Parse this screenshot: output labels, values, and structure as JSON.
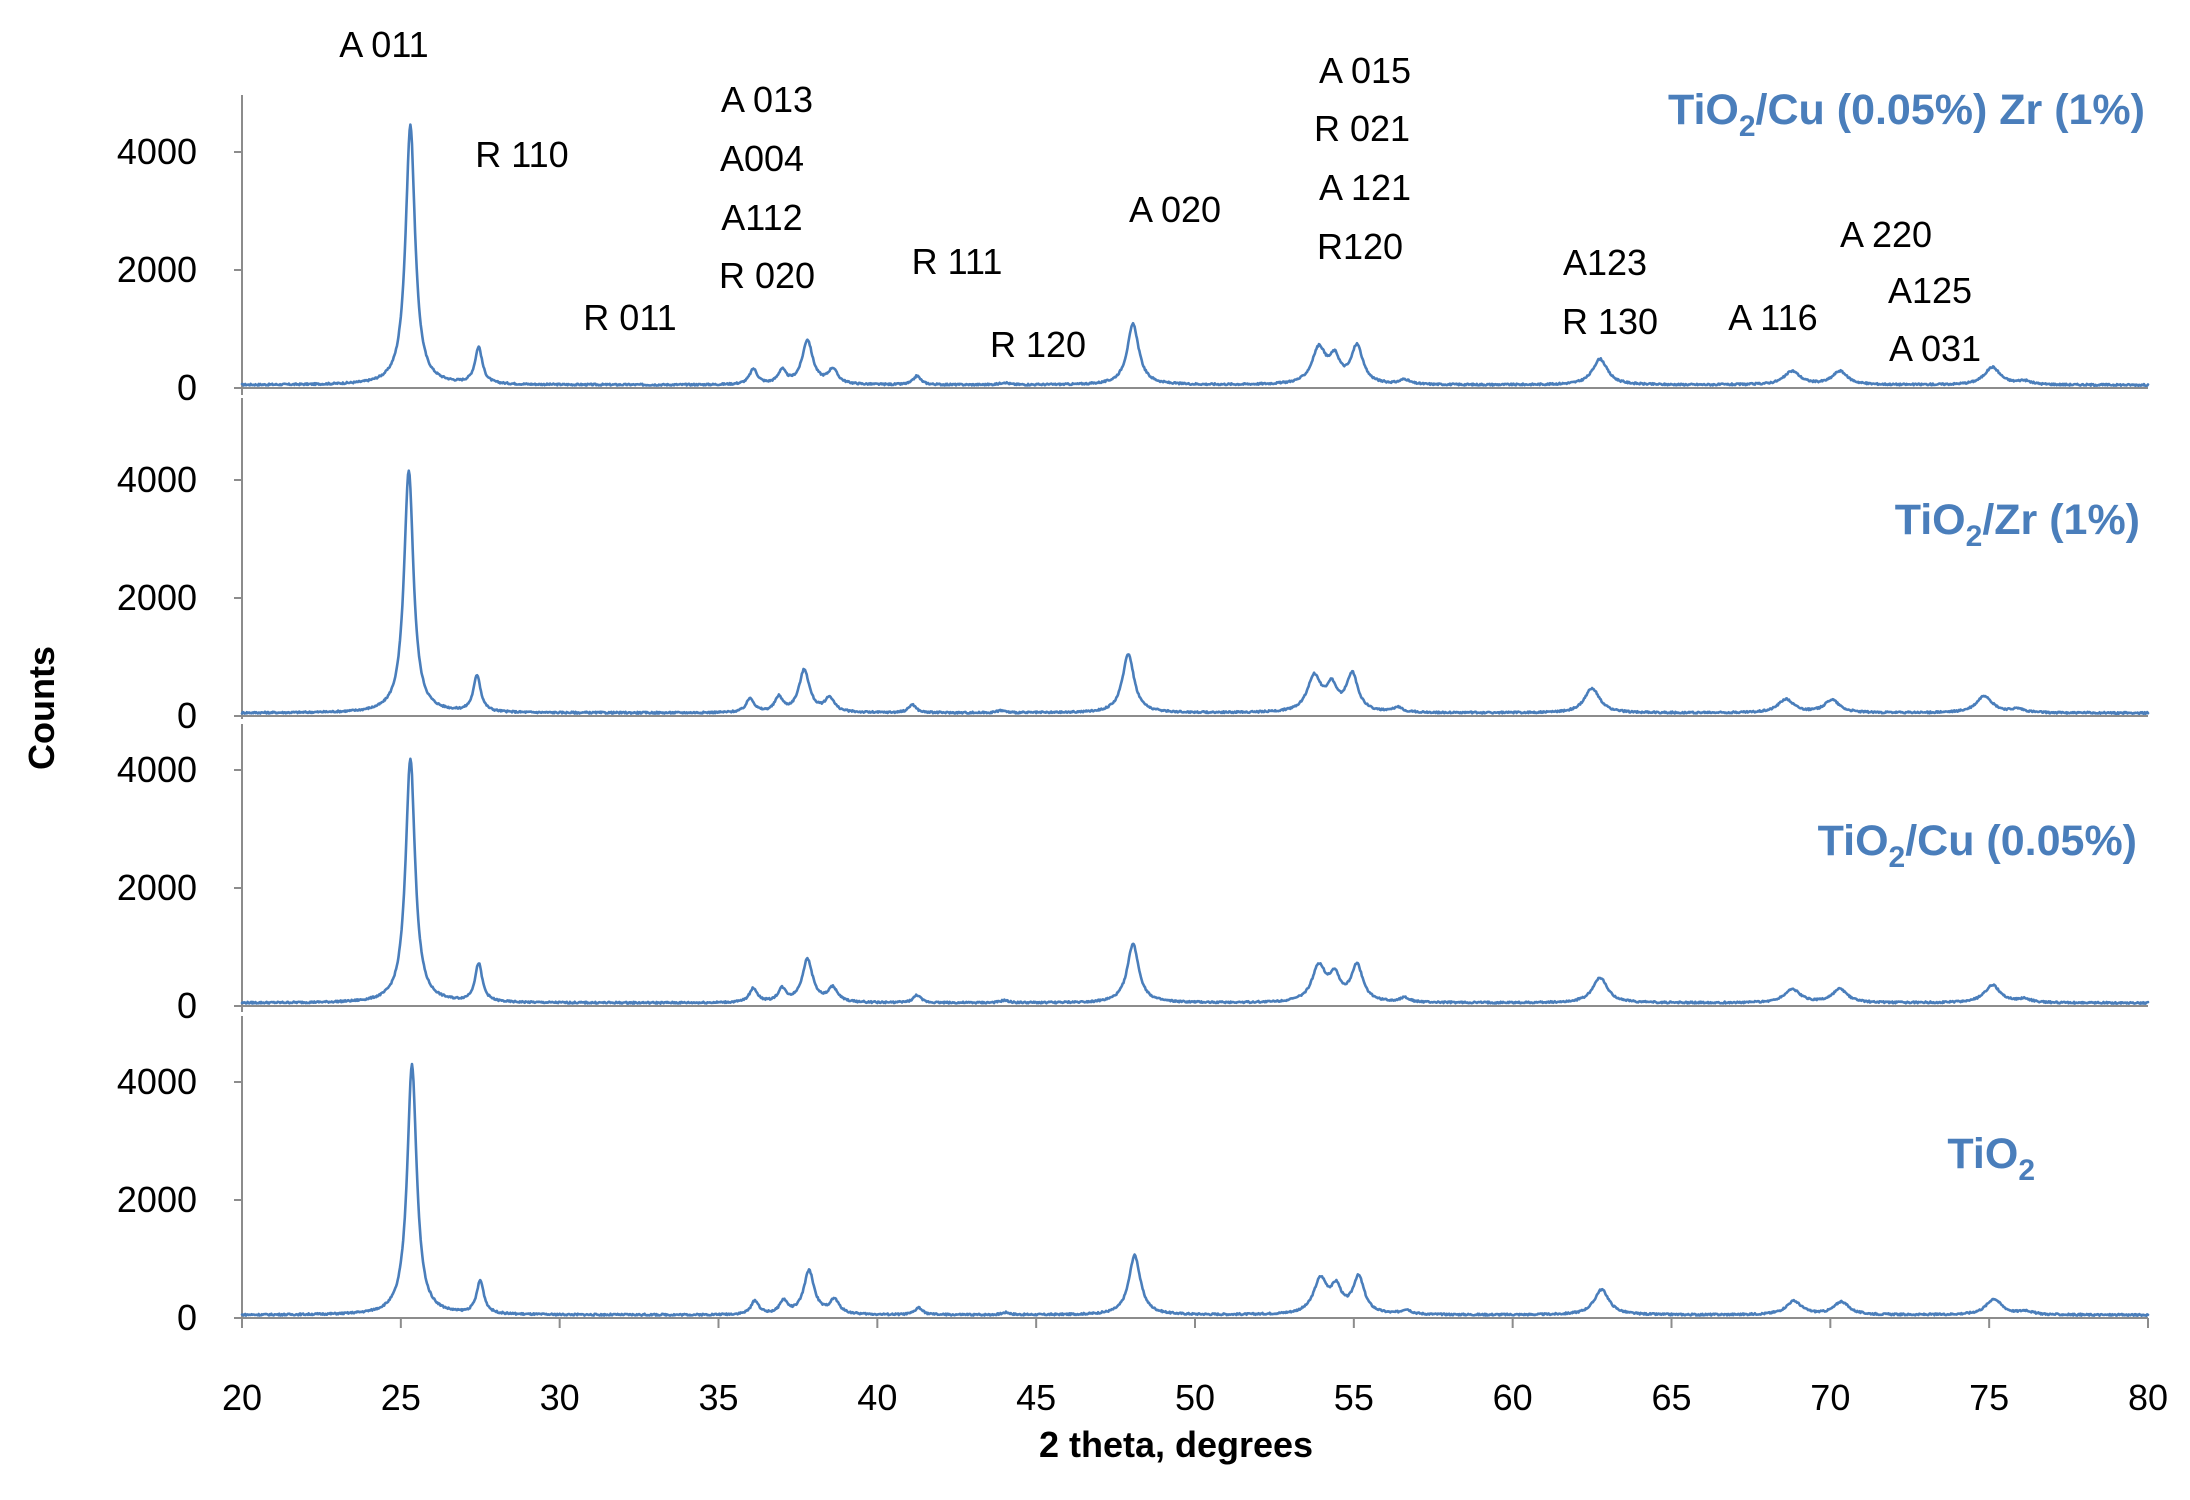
{
  "chart_data": {
    "type": "line",
    "xlabel": "2 theta, degrees",
    "ylabel": "Counts",
    "xlim": [
      20,
      80
    ],
    "ylim": [
      0,
      5000
    ],
    "x_ticks": [
      20,
      25,
      30,
      35,
      40,
      45,
      50,
      55,
      60,
      65,
      70,
      75,
      80
    ],
    "y_ticks": [
      0,
      2000,
      4000
    ],
    "grid": false,
    "line_color": "#4a7ebb",
    "baseline": 50,
    "panels": [
      {
        "name": "TiO",
        "name_subscript": "2",
        "name_suffix": "/Cu (0.05%) Zr (1%)",
        "peaks": [
          {
            "x": 25.3,
            "height": 4400,
            "width": 0.18
          },
          {
            "x": 27.45,
            "height": 620,
            "width": 0.14
          },
          {
            "x": 36.1,
            "height": 260,
            "width": 0.15
          },
          {
            "x": 37.0,
            "height": 230,
            "width": 0.15
          },
          {
            "x": 37.8,
            "height": 750,
            "width": 0.2
          },
          {
            "x": 38.6,
            "height": 250,
            "width": 0.18
          },
          {
            "x": 41.25,
            "height": 150,
            "width": 0.14
          },
          {
            "x": 44.0,
            "height": 40,
            "width": 0.15
          },
          {
            "x": 48.05,
            "height": 1030,
            "width": 0.22
          },
          {
            "x": 53.9,
            "height": 600,
            "width": 0.26
          },
          {
            "x": 54.4,
            "height": 400,
            "width": 0.2
          },
          {
            "x": 55.1,
            "height": 640,
            "width": 0.22
          },
          {
            "x": 56.6,
            "height": 80,
            "width": 0.18
          },
          {
            "x": 62.75,
            "height": 440,
            "width": 0.28
          },
          {
            "x": 68.8,
            "height": 230,
            "width": 0.3
          },
          {
            "x": 70.3,
            "height": 230,
            "width": 0.28
          },
          {
            "x": 75.1,
            "height": 300,
            "width": 0.3
          },
          {
            "x": 76.1,
            "height": 60,
            "width": 0.25
          }
        ]
      },
      {
        "name": "TiO",
        "name_subscript": "2",
        "name_suffix": "/Zr (1%)",
        "peaks": [
          {
            "x": 25.25,
            "height": 4100,
            "width": 0.18
          },
          {
            "x": 27.4,
            "height": 620,
            "width": 0.14
          },
          {
            "x": 36.0,
            "height": 240,
            "width": 0.15
          },
          {
            "x": 36.9,
            "height": 250,
            "width": 0.15
          },
          {
            "x": 37.7,
            "height": 720,
            "width": 0.2
          },
          {
            "x": 38.5,
            "height": 240,
            "width": 0.18
          },
          {
            "x": 41.1,
            "height": 140,
            "width": 0.14
          },
          {
            "x": 43.9,
            "height": 40,
            "width": 0.15
          },
          {
            "x": 47.9,
            "height": 1000,
            "width": 0.22
          },
          {
            "x": 53.75,
            "height": 600,
            "width": 0.26
          },
          {
            "x": 54.3,
            "height": 400,
            "width": 0.2
          },
          {
            "x": 54.95,
            "height": 640,
            "width": 0.22
          },
          {
            "x": 56.4,
            "height": 80,
            "width": 0.18
          },
          {
            "x": 62.5,
            "height": 420,
            "width": 0.28
          },
          {
            "x": 68.6,
            "height": 230,
            "width": 0.3
          },
          {
            "x": 70.05,
            "height": 220,
            "width": 0.28
          },
          {
            "x": 74.85,
            "height": 290,
            "width": 0.3
          },
          {
            "x": 75.9,
            "height": 60,
            "width": 0.25
          }
        ]
      },
      {
        "name": "TiO",
        "name_subscript": "2",
        "name_suffix": "/Cu (0.05%)",
        "peaks": [
          {
            "x": 25.3,
            "height": 4150,
            "width": 0.18
          },
          {
            "x": 27.45,
            "height": 650,
            "width": 0.14
          },
          {
            "x": 36.1,
            "height": 240,
            "width": 0.15
          },
          {
            "x": 37.0,
            "height": 220,
            "width": 0.15
          },
          {
            "x": 37.8,
            "height": 730,
            "width": 0.2
          },
          {
            "x": 38.6,
            "height": 240,
            "width": 0.18
          },
          {
            "x": 41.25,
            "height": 130,
            "width": 0.14
          },
          {
            "x": 44.0,
            "height": 40,
            "width": 0.15
          },
          {
            "x": 48.05,
            "height": 1000,
            "width": 0.22
          },
          {
            "x": 53.9,
            "height": 600,
            "width": 0.26
          },
          {
            "x": 54.4,
            "height": 400,
            "width": 0.2
          },
          {
            "x": 55.1,
            "height": 620,
            "width": 0.22
          },
          {
            "x": 56.6,
            "height": 80,
            "width": 0.18
          },
          {
            "x": 62.75,
            "height": 430,
            "width": 0.28
          },
          {
            "x": 68.8,
            "height": 230,
            "width": 0.3
          },
          {
            "x": 70.3,
            "height": 230,
            "width": 0.28
          },
          {
            "x": 75.1,
            "height": 300,
            "width": 0.3
          },
          {
            "x": 76.1,
            "height": 60,
            "width": 0.25
          }
        ]
      },
      {
        "name": "TiO",
        "name_subscript": "2",
        "name_suffix": "",
        "peaks": [
          {
            "x": 25.35,
            "height": 4250,
            "width": 0.18
          },
          {
            "x": 27.5,
            "height": 560,
            "width": 0.14
          },
          {
            "x": 36.15,
            "height": 230,
            "width": 0.15
          },
          {
            "x": 37.05,
            "height": 220,
            "width": 0.15
          },
          {
            "x": 37.85,
            "height": 740,
            "width": 0.2
          },
          {
            "x": 38.65,
            "height": 240,
            "width": 0.18
          },
          {
            "x": 41.3,
            "height": 120,
            "width": 0.14
          },
          {
            "x": 44.05,
            "height": 40,
            "width": 0.15
          },
          {
            "x": 48.1,
            "height": 1010,
            "width": 0.22
          },
          {
            "x": 53.95,
            "height": 580,
            "width": 0.26
          },
          {
            "x": 54.45,
            "height": 400,
            "width": 0.2
          },
          {
            "x": 55.15,
            "height": 620,
            "width": 0.22
          },
          {
            "x": 56.65,
            "height": 80,
            "width": 0.18
          },
          {
            "x": 62.8,
            "height": 430,
            "width": 0.28
          },
          {
            "x": 68.85,
            "height": 230,
            "width": 0.3
          },
          {
            "x": 70.35,
            "height": 220,
            "width": 0.28
          },
          {
            "x": 75.15,
            "height": 270,
            "width": 0.3
          },
          {
            "x": 76.15,
            "height": 60,
            "width": 0.25
          }
        ]
      }
    ],
    "annotations": [
      "A 011",
      "R 110",
      "R 011",
      "A 013",
      "A004",
      "A112",
      "R 020",
      "R 111",
      "R 120",
      "A 020",
      "A 015",
      "R 021",
      "A 121",
      "R120",
      "A123",
      "R 130",
      "A 116",
      "A 220",
      "A125",
      "A 031"
    ]
  }
}
